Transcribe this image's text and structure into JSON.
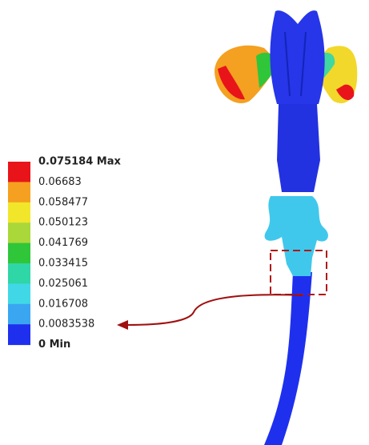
{
  "legend": {
    "labels": [
      "0.075184 Max",
      "0.06683",
      "0.058477",
      "0.050123",
      "0.041769",
      "0.033415",
      "0.025061",
      "0.016708",
      "0.0083538",
      "0 Min"
    ],
    "colors": [
      "#e8141a",
      "#f5a020",
      "#f2e62a",
      "#aad83a",
      "#2fc63a",
      "#2fd6a6",
      "#40d8e6",
      "#3aa6f2",
      "#1e30ee"
    ]
  }
}
